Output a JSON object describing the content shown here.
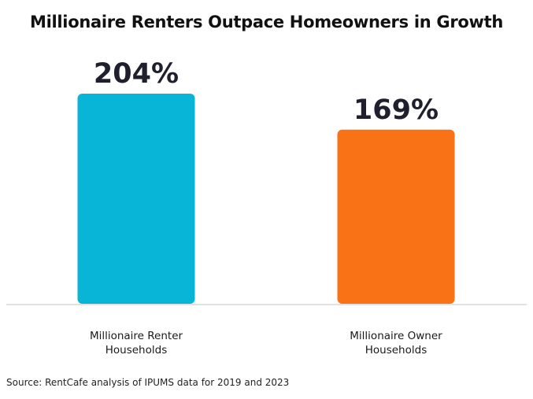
{
  "chart_data": {
    "type": "bar",
    "title": "Millionaire Renters Outpace Homeowners in Growth",
    "categories": [
      [
        "Millionaire Renter",
        "Households"
      ],
      [
        "Millionaire Owner",
        "Households"
      ]
    ],
    "values": [
      204,
      169
    ],
    "value_labels": [
      "204%",
      "169%"
    ],
    "colors": [
      "#09b5d6",
      "#f97316"
    ],
    "ylim": [
      0,
      204
    ],
    "grid": false,
    "legend": "none",
    "source": "Source: RentCafe analysis of IPUMS data for 2019 and 2023"
  }
}
